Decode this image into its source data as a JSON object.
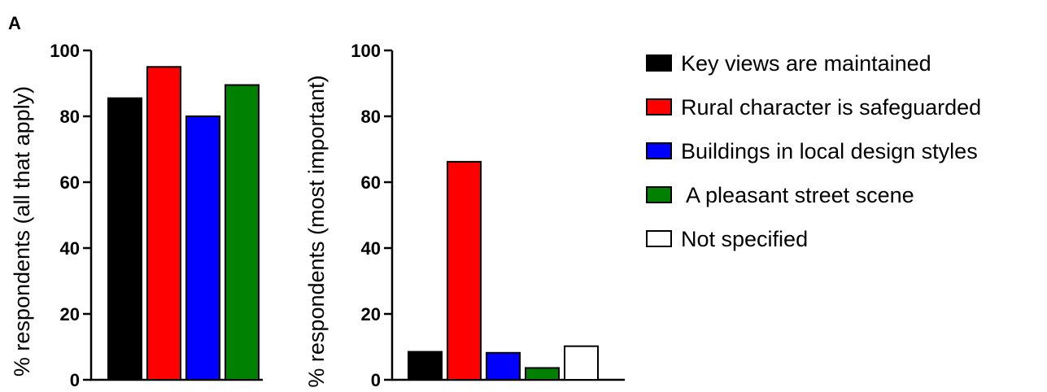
{
  "panel_label": "A",
  "legend": [
    {
      "label": "Key views are maintained",
      "color": "#000000"
    },
    {
      "label": "Rural character is safeguarded",
      "color": "#ff0000"
    },
    {
      "label": "Buildings in local design styles",
      "color": "#0000ff"
    },
    {
      "label": " A pleasant street scene",
      "color": "#008000"
    },
    {
      "label": "Not specified",
      "color": "#ffffff"
    }
  ],
  "chart_data": [
    {
      "type": "bar",
      "ylabel": "% respondents (all that apply)",
      "ylim": [
        0,
        100
      ],
      "yticks": [
        0,
        20,
        40,
        60,
        80,
        100
      ],
      "categories": [
        "Key views are maintained",
        "Rural character is safeguarded",
        "Buildings in local design styles",
        " A pleasant street scene"
      ],
      "values": [
        85.5,
        95,
        80,
        89.5
      ],
      "colors": [
        "#000000",
        "#ff0000",
        "#0000ff",
        "#008000"
      ]
    },
    {
      "type": "bar",
      "ylabel": "% respondents (most important)",
      "ylim": [
        0,
        100
      ],
      "yticks": [
        0,
        20,
        40,
        60,
        80,
        100
      ],
      "categories": [
        "Key views are maintained",
        "Rural character is safeguarded",
        "Buildings in local design styles",
        " A pleasant street scene",
        "Not specified"
      ],
      "values": [
        8.5,
        66.2,
        8.2,
        3.6,
        10.2
      ],
      "colors": [
        "#000000",
        "#ff0000",
        "#0000ff",
        "#008000",
        "#ffffff"
      ]
    }
  ]
}
